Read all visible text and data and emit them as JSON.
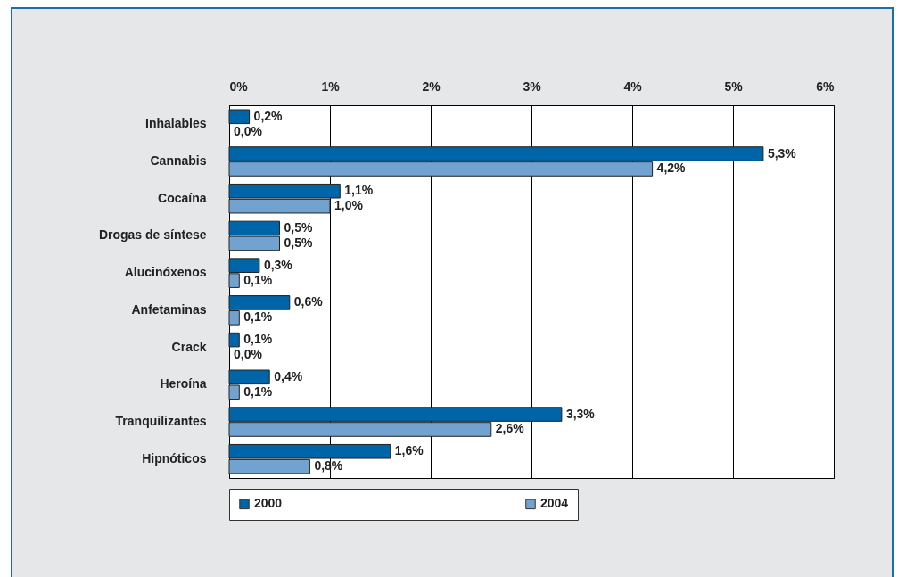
{
  "chart_data": {
    "type": "bar",
    "orientation": "horizontal",
    "categories": [
      "Inhalables",
      "Cannabis",
      "Cocaína",
      "Drogas de síntese",
      "Alucinóxenos",
      "Anfetaminas",
      "Crack",
      "Heroína",
      "Tranquilizantes",
      "Hipnóticos"
    ],
    "series": [
      {
        "name": "2000",
        "color": "#0065a8",
        "values": [
          0.2,
          5.3,
          1.1,
          0.5,
          0.3,
          0.6,
          0.1,
          0.4,
          3.3,
          1.6
        ],
        "value_labels": [
          "0,2%",
          "5,3%",
          "1,1%",
          "0,5%",
          "0,3%",
          "0,6%",
          "0,1%",
          "0,4%",
          "3,3%",
          "1,6%"
        ]
      },
      {
        "name": "2004",
        "color": "#72a2cf",
        "values": [
          0.0,
          4.2,
          1.0,
          0.5,
          0.1,
          0.1,
          0.0,
          0.1,
          2.6,
          0.8
        ],
        "value_labels": [
          "0,0%",
          "4,2%",
          "1,0%",
          "0,5%",
          "0,1%",
          "0,1%",
          "0,0%",
          "0,1%",
          "2,6%",
          "0,8%"
        ]
      }
    ],
    "xlim": [
      0,
      6
    ],
    "xticks": [
      {
        "value": 0,
        "label": "0%"
      },
      {
        "value": 1,
        "label": "1%"
      },
      {
        "value": 2,
        "label": "2%"
      },
      {
        "value": 3,
        "label": "3%"
      },
      {
        "value": 4,
        "label": "4%"
      },
      {
        "value": 5,
        "label": "5%"
      },
      {
        "value": 6,
        "label": "6%"
      }
    ],
    "grid": "x",
    "legend": "bottom"
  }
}
